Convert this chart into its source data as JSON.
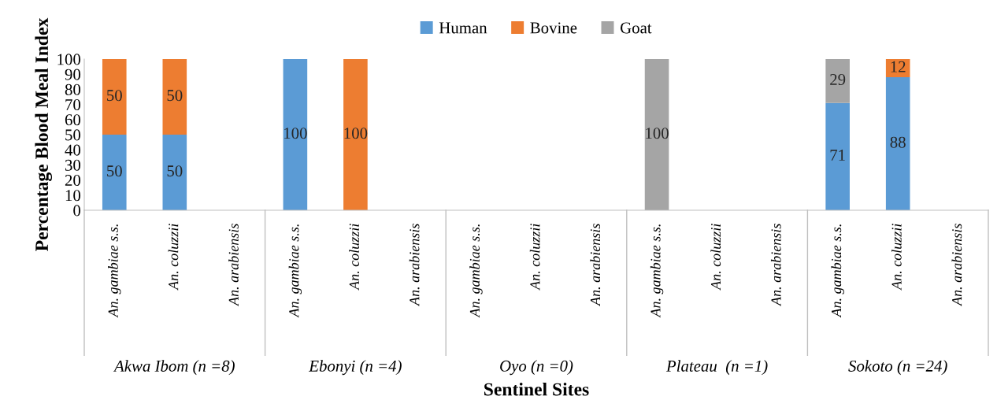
{
  "chart_data": {
    "type": "bar",
    "stacked": true,
    "xlabel": "Sentinel Sites",
    "ylabel": "Percentage Blood Meal Index",
    "categories": [
      "An. gambiae s.s.",
      "An. coluzzii",
      "An. arabiensis",
      "An. gambiae s.s.",
      "An. coluzzii",
      "An. arabiensis",
      "An. gambiae s.s.",
      "An. coluzzii",
      "An. arabiensis",
      "An. gambiae s.s.",
      "An. coluzzii",
      "An. arabiensis",
      "An. gambiae s.s.",
      "An. coluzzii",
      "An. arabiensis"
    ],
    "series": [
      {
        "name": "Human",
        "color": "#5b9bd5",
        "values": [
          50,
          50,
          null,
          100,
          null,
          null,
          null,
          null,
          null,
          null,
          null,
          null,
          71,
          88,
          null
        ]
      },
      {
        "name": "Bovine",
        "color": "#ed7d31",
        "values": [
          50,
          50,
          null,
          null,
          100,
          null,
          null,
          null,
          null,
          null,
          null,
          null,
          null,
          12,
          null
        ]
      },
      {
        "name": "Goat",
        "color": "#a5a5a5",
        "values": [
          null,
          null,
          null,
          null,
          null,
          null,
          null,
          null,
          null,
          100,
          null,
          null,
          29,
          null,
          null
        ]
      }
    ],
    "annotations": [
      "Akwa Ibom (n =8)",
      "Ebonyi (n =4)",
      "Oyo (n =0)",
      "Plateau  (n =1)",
      "Sokoto (n =24)"
    ],
    "ylim": [
      0,
      100
    ],
    "yticks": [
      0,
      10,
      20,
      30,
      40,
      50,
      60,
      70,
      80,
      90,
      100
    ],
    "data_labels": true,
    "grid": false,
    "legend": "top"
  }
}
